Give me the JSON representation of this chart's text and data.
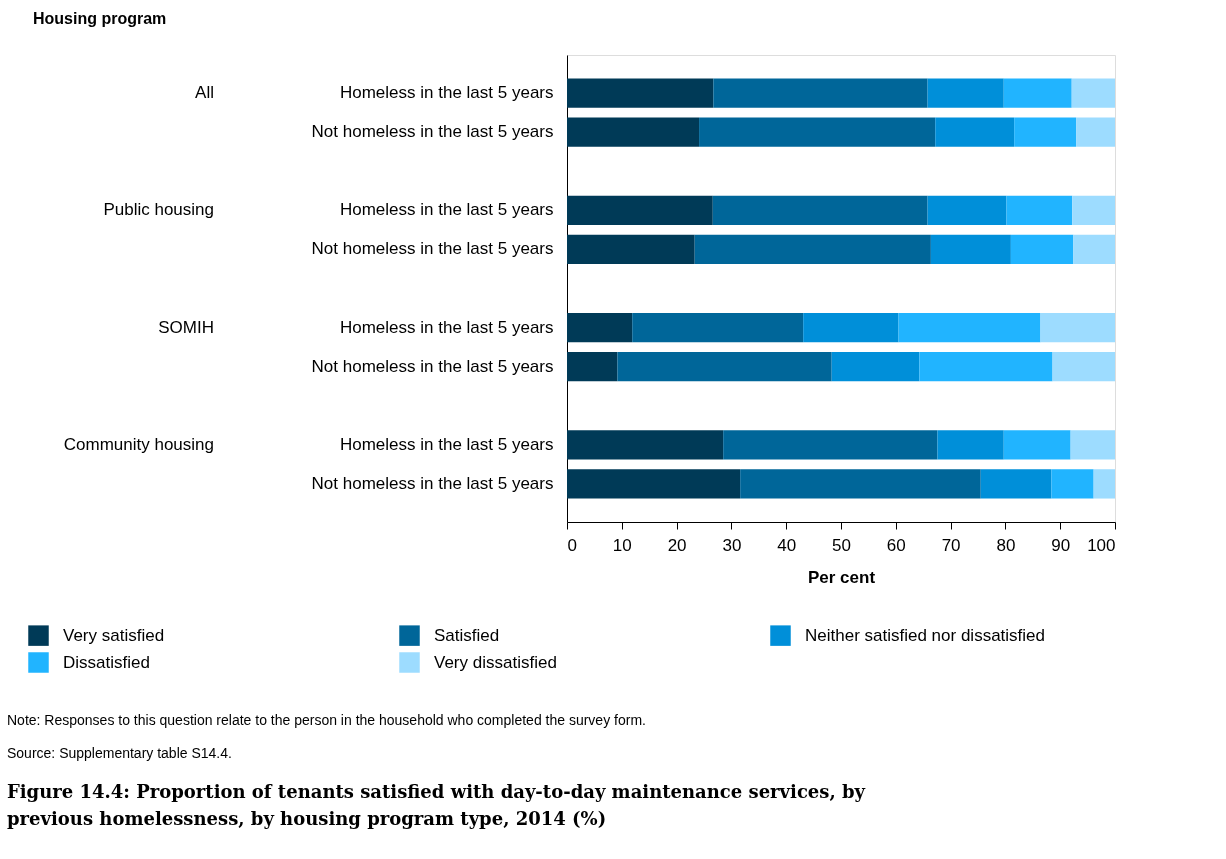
{
  "chart_data": {
    "type": "bar",
    "orientation": "horizontal",
    "stacked": true,
    "title": "Figure 14.4: Proportion of tenants satisfied with day-to-day maintenance services, by previous homelessness, by housing program type, 2014 (%)",
    "xlabel": "Per cent",
    "legend": "bottom",
    "grid": false,
    "categories": [
      "Homeless in the last 5 years",
      "Not homeless in the last 5 years",
      "Homeless in the last 5 years",
      "Not homeless in the last 5 years",
      "Homeless in the last 5 years",
      "Not homeless in the last 5 years",
      "Homeless in the last 5 years",
      "Not homeless in the last 5 years"
    ],
    "xlim": [
      0,
      100
    ],
    "xticks": [
      0,
      10,
      20,
      30,
      40,
      50,
      60,
      70,
      80,
      90,
      100
    ],
    "annotations": [
      "Housing program",
      "All",
      "Public housing",
      "SOMIH",
      "Community housing",
      "Note: Responses to this question relate to the person in the household who completed the survey form.",
      "Source: Supplementary table S14.4."
    ],
    "series": [
      {
        "name": "Very satisfied",
        "color": "#003a57",
        "values": [
          26.7,
          24.1,
          26.6,
          23.3,
          11.9,
          9.2,
          28.5,
          31.6
        ]
      },
      {
        "name": "Satisfied",
        "color": "#006699",
        "values": [
          39.1,
          43.1,
          39.2,
          43.1,
          31.2,
          39.1,
          39.1,
          43.9
        ]
      },
      {
        "name": "Neither satisfied nor dissatisfied",
        "color": "#008fd9",
        "values": [
          13.9,
          14.4,
          14.4,
          14.6,
          17.4,
          16.0,
          12.1,
          12.9
        ]
      },
      {
        "name": "Dissatisfied",
        "color": "#21b4ff",
        "values": [
          12.4,
          11.3,
          12.0,
          11.4,
          25.9,
          24.3,
          12.2,
          7.7
        ]
      },
      {
        "name": "Very dissatisfied",
        "color": "#9ddcff",
        "values": [
          7.9,
          7.1,
          7.8,
          7.6,
          13.6,
          11.4,
          8.1,
          3.9
        ]
      }
    ]
  }
}
